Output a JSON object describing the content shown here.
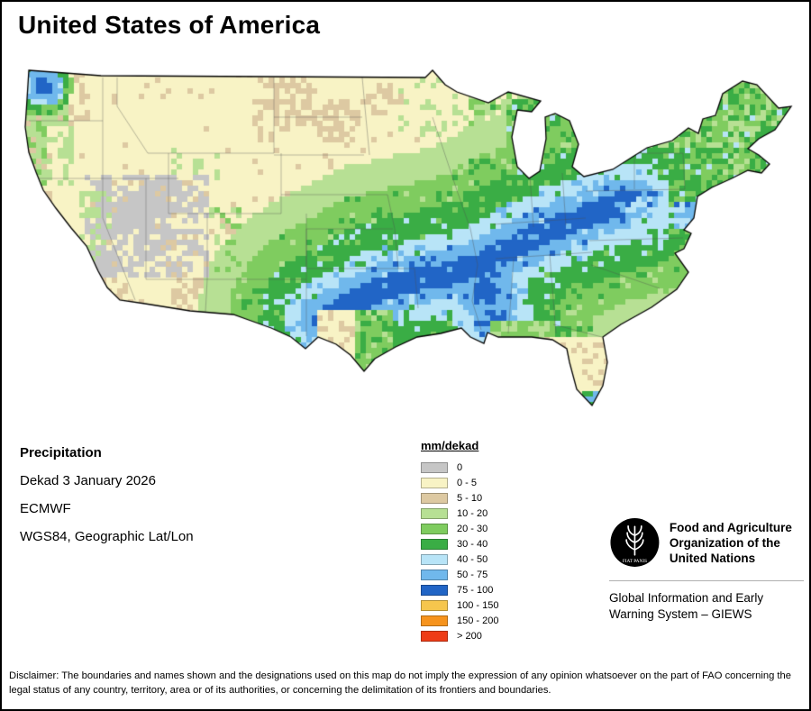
{
  "title": "United States of America",
  "info": {
    "parameter": "Precipitation",
    "dekad": "Dekad 3 January 2026",
    "source": "ECMWF",
    "projection": "WGS84, Geographic Lat/Lon"
  },
  "legend": {
    "title": "mm/dekad",
    "entries": [
      {
        "label": "0",
        "color": "#c6c6c6"
      },
      {
        "label": "0 - 5",
        "color": "#f8f3c5"
      },
      {
        "label": "5 - 10",
        "color": "#ddc9a2"
      },
      {
        "label": "10 - 20",
        "color": "#b7e094"
      },
      {
        "label": "20 - 30",
        "color": "#7fcc5f"
      },
      {
        "label": "30 - 40",
        "color": "#3aad45"
      },
      {
        "label": "40 - 50",
        "color": "#b8e4f7"
      },
      {
        "label": "50 - 75",
        "color": "#70b8ec"
      },
      {
        "label": "75 - 100",
        "color": "#2165c6"
      },
      {
        "label": "100 - 150",
        "color": "#f6c64d"
      },
      {
        "label": "150 - 200",
        "color": "#f6931d"
      },
      {
        "label": "> 200",
        "color": "#ee3c17"
      }
    ]
  },
  "fao": {
    "logo_motto": "FIAT PANIS",
    "org_name": "Food and Agriculture Organization of the United Nations",
    "giews": "Global Information and Early Warning System – GIEWS"
  },
  "disclaimer": "Disclaimer: The boundaries and names shown and the designations used on this map do not imply the expression of any opinion whatsoever on the part of FAO concerning the legal status of any country, territory, area or of its authorities, or concerning the delimitation of its frontiers and boundaries."
}
